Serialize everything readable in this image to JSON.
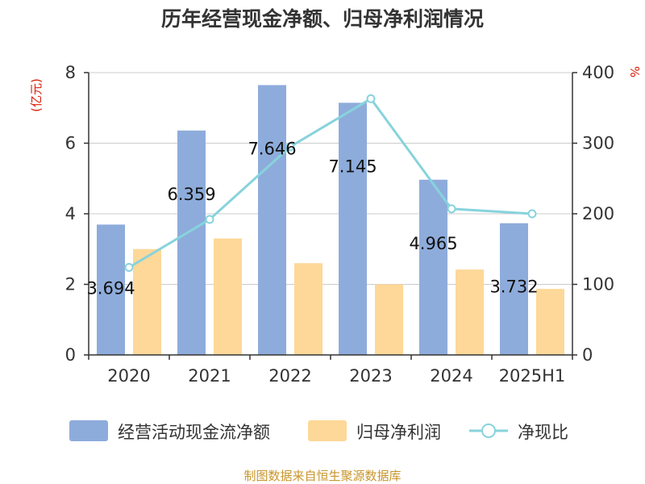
{
  "chart_data": {
    "title": "历年经营现金净额、归母净利润情况",
    "type": "bar",
    "categories": [
      "2020",
      "2021",
      "2022",
      "2023",
      "2024",
      "2025H1"
    ],
    "y_left": {
      "unit": "(亿元)",
      "ylim": [
        0,
        8
      ],
      "ticks": [
        0,
        2,
        4,
        6,
        8
      ]
    },
    "y_right": {
      "unit": "%",
      "ylim": [
        0,
        400
      ],
      "ticks": [
        0,
        100,
        200,
        300,
        400
      ]
    },
    "series": [
      {
        "name": "经营活动现金流净额",
        "type": "bar",
        "axis": "left",
        "color": "#8eacdb",
        "values": [
          3.694,
          6.359,
          7.646,
          7.145,
          4.965,
          3.732
        ],
        "labels": [
          "3.694",
          "6.359",
          "7.646",
          "7.145",
          "4.965",
          "3.732"
        ]
      },
      {
        "name": "归母净利润",
        "type": "bar",
        "axis": "left",
        "color": "#fdd898",
        "values": [
          3.0,
          3.3,
          2.6,
          2.0,
          2.42,
          1.87
        ]
      },
      {
        "name": "净现比",
        "type": "line",
        "axis": "right",
        "color": "#87d3dc",
        "values": [
          124,
          192,
          295,
          363,
          207,
          200
        ]
      }
    ],
    "grid": true,
    "legend_position": "bottom"
  },
  "source": "制图数据来自恒生聚源数据库"
}
